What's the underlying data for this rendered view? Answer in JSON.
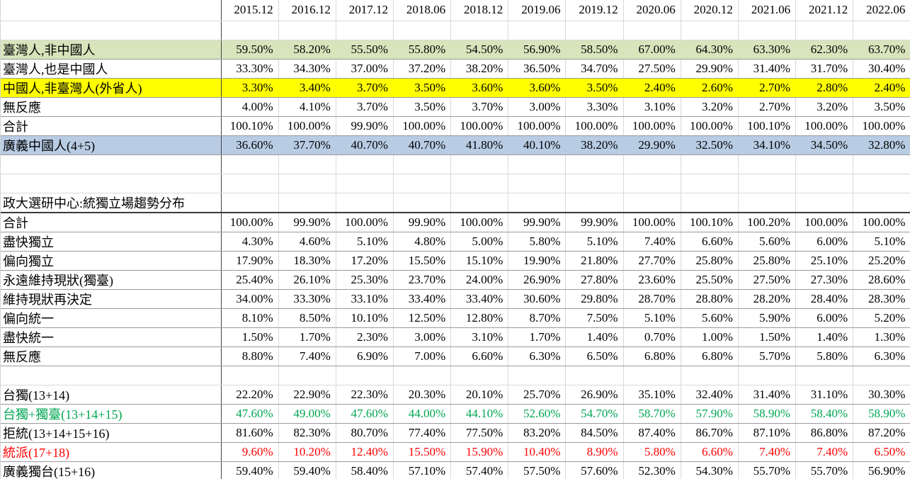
{
  "colors": {
    "green_row_bg": "#D8E4BC",
    "yellow_row_bg": "#FFFF00",
    "blue_row_bg": "#B8CCE4",
    "green_text": "#00A651",
    "red_text": "#FF0000",
    "dark_border": "#454545",
    "gridline": "#D9D9D9"
  },
  "columns": [
    "2015.12",
    "2016.12",
    "2017.12",
    "2018.06",
    "2018.12",
    "2019.06",
    "2019.12",
    "2020.06",
    "2020.12",
    "2021.06",
    "2021.12",
    "2022.06"
  ],
  "rows": [
    {
      "kind": "blank",
      "label": "",
      "values": []
    },
    {
      "kind": "data",
      "label": "臺灣人,非中國人",
      "bg": "green",
      "values": [
        "59.50%",
        "58.20%",
        "55.50%",
        "55.80%",
        "54.50%",
        "56.90%",
        "58.50%",
        "67.00%",
        "64.30%",
        "63.30%",
        "62.30%",
        "63.70%"
      ]
    },
    {
      "kind": "data",
      "label": "臺灣人,也是中國人",
      "values": [
        "33.30%",
        "34.30%",
        "37.00%",
        "37.20%",
        "38.20%",
        "36.50%",
        "34.70%",
        "27.50%",
        "29.90%",
        "31.40%",
        "31.70%",
        "30.40%"
      ]
    },
    {
      "kind": "data",
      "label": "中國人,非臺灣人(外省人)",
      "bg": "yellow",
      "values": [
        "3.30%",
        "3.40%",
        "3.70%",
        "3.50%",
        "3.60%",
        "3.60%",
        "3.50%",
        "2.40%",
        "2.60%",
        "2.70%",
        "2.80%",
        "2.40%"
      ]
    },
    {
      "kind": "data",
      "label": "無反應",
      "values": [
        "4.00%",
        "4.10%",
        "3.70%",
        "3.50%",
        "3.70%",
        "3.00%",
        "3.30%",
        "3.10%",
        "3.20%",
        "2.70%",
        "3.20%",
        "3.50%"
      ]
    },
    {
      "kind": "data",
      "label": "合計",
      "values": [
        "100.10%",
        "100.00%",
        "99.90%",
        "100.00%",
        "100.00%",
        "100.00%",
        "100.00%",
        "100.00%",
        "100.00%",
        "100.10%",
        "100.00%",
        "100.00%"
      ]
    },
    {
      "kind": "data",
      "label": "廣義中國人(4+5)",
      "bg": "blue",
      "values": [
        "36.60%",
        "37.70%",
        "40.70%",
        "40.70%",
        "41.80%",
        "40.10%",
        "38.20%",
        "29.90%",
        "32.50%",
        "34.10%",
        "34.50%",
        "32.80%"
      ]
    },
    {
      "kind": "blank",
      "label": "",
      "values": []
    },
    {
      "kind": "blank",
      "label": "",
      "values": []
    },
    {
      "kind": "title",
      "label": "政大選研中心:統獨立場趨勢分布",
      "values": []
    },
    {
      "kind": "data",
      "label": "合計",
      "values": [
        "100.00%",
        "99.90%",
        "100.00%",
        "99.90%",
        "100.00%",
        "99.90%",
        "99.90%",
        "100.00%",
        "100.10%",
        "100.20%",
        "100.00%",
        "100.00%"
      ]
    },
    {
      "kind": "data",
      "label": "盡快獨立",
      "values": [
        "4.30%",
        "4.60%",
        "5.10%",
        "4.80%",
        "5.00%",
        "5.80%",
        "5.10%",
        "7.40%",
        "6.60%",
        "5.60%",
        "6.00%",
        "5.10%"
      ]
    },
    {
      "kind": "data",
      "label": "偏向獨立",
      "values": [
        "17.90%",
        "18.30%",
        "17.20%",
        "15.50%",
        "15.10%",
        "19.90%",
        "21.80%",
        "27.70%",
        "25.80%",
        "25.80%",
        "25.10%",
        "25.20%"
      ]
    },
    {
      "kind": "data",
      "label": "永遠維持現狀(獨臺)",
      "values": [
        "25.40%",
        "26.10%",
        "25.30%",
        "23.70%",
        "24.00%",
        "26.90%",
        "27.80%",
        "23.60%",
        "25.50%",
        "27.50%",
        "27.30%",
        "28.60%"
      ]
    },
    {
      "kind": "data",
      "label": "維持現狀再決定",
      "values": [
        "34.00%",
        "33.30%",
        "33.10%",
        "33.40%",
        "33.40%",
        "30.60%",
        "29.80%",
        "28.70%",
        "28.80%",
        "28.20%",
        "28.40%",
        "28.30%"
      ]
    },
    {
      "kind": "data",
      "label": "偏向統一",
      "values": [
        "8.10%",
        "8.50%",
        "10.10%",
        "12.50%",
        "12.80%",
        "8.70%",
        "7.50%",
        "5.10%",
        "5.60%",
        "5.90%",
        "6.00%",
        "5.20%"
      ]
    },
    {
      "kind": "data",
      "label": "盡快統一",
      "values": [
        "1.50%",
        "1.70%",
        "2.30%",
        "3.00%",
        "3.10%",
        "1.70%",
        "1.40%",
        "0.70%",
        "1.00%",
        "1.50%",
        "1.40%",
        "1.30%"
      ]
    },
    {
      "kind": "data",
      "label": "無反應",
      "values": [
        "8.80%",
        "7.40%",
        "6.90%",
        "7.00%",
        "6.60%",
        "6.30%",
        "6.50%",
        "6.80%",
        "6.80%",
        "5.70%",
        "5.80%",
        "6.30%"
      ]
    },
    {
      "kind": "blank",
      "label": "",
      "values": []
    },
    {
      "kind": "data",
      "label": "台獨(13+14)",
      "values": [
        "22.20%",
        "22.90%",
        "22.30%",
        "20.30%",
        "20.10%",
        "25.70%",
        "26.90%",
        "35.10%",
        "32.40%",
        "31.40%",
        "31.10%",
        "30.30%"
      ]
    },
    {
      "kind": "data",
      "label": "台獨+獨臺(13+14+15)",
      "fg": "green",
      "values": [
        "47.60%",
        "49.00%",
        "47.60%",
        "44.00%",
        "44.10%",
        "52.60%",
        "54.70%",
        "58.70%",
        "57.90%",
        "58.90%",
        "58.40%",
        "58.90%"
      ]
    },
    {
      "kind": "data",
      "label": "拒統(13+14+15+16)",
      "values": [
        "81.60%",
        "82.30%",
        "80.70%",
        "77.40%",
        "77.50%",
        "83.20%",
        "84.50%",
        "87.40%",
        "86.70%",
        "87.10%",
        "86.80%",
        "87.20%"
      ]
    },
    {
      "kind": "data",
      "label": "統派(17+18)",
      "fg": "red",
      "values": [
        "9.60%",
        "10.20%",
        "12.40%",
        "15.50%",
        "15.90%",
        "10.40%",
        "8.90%",
        "5.80%",
        "6.60%",
        "7.40%",
        "7.40%",
        "6.50%"
      ]
    },
    {
      "kind": "data",
      "label": "廣義獨台(15+16)",
      "values": [
        "59.40%",
        "59.40%",
        "58.40%",
        "57.10%",
        "57.40%",
        "57.50%",
        "57.60%",
        "52.30%",
        "54.30%",
        "55.70%",
        "55.70%",
        "56.90%"
      ]
    }
  ]
}
